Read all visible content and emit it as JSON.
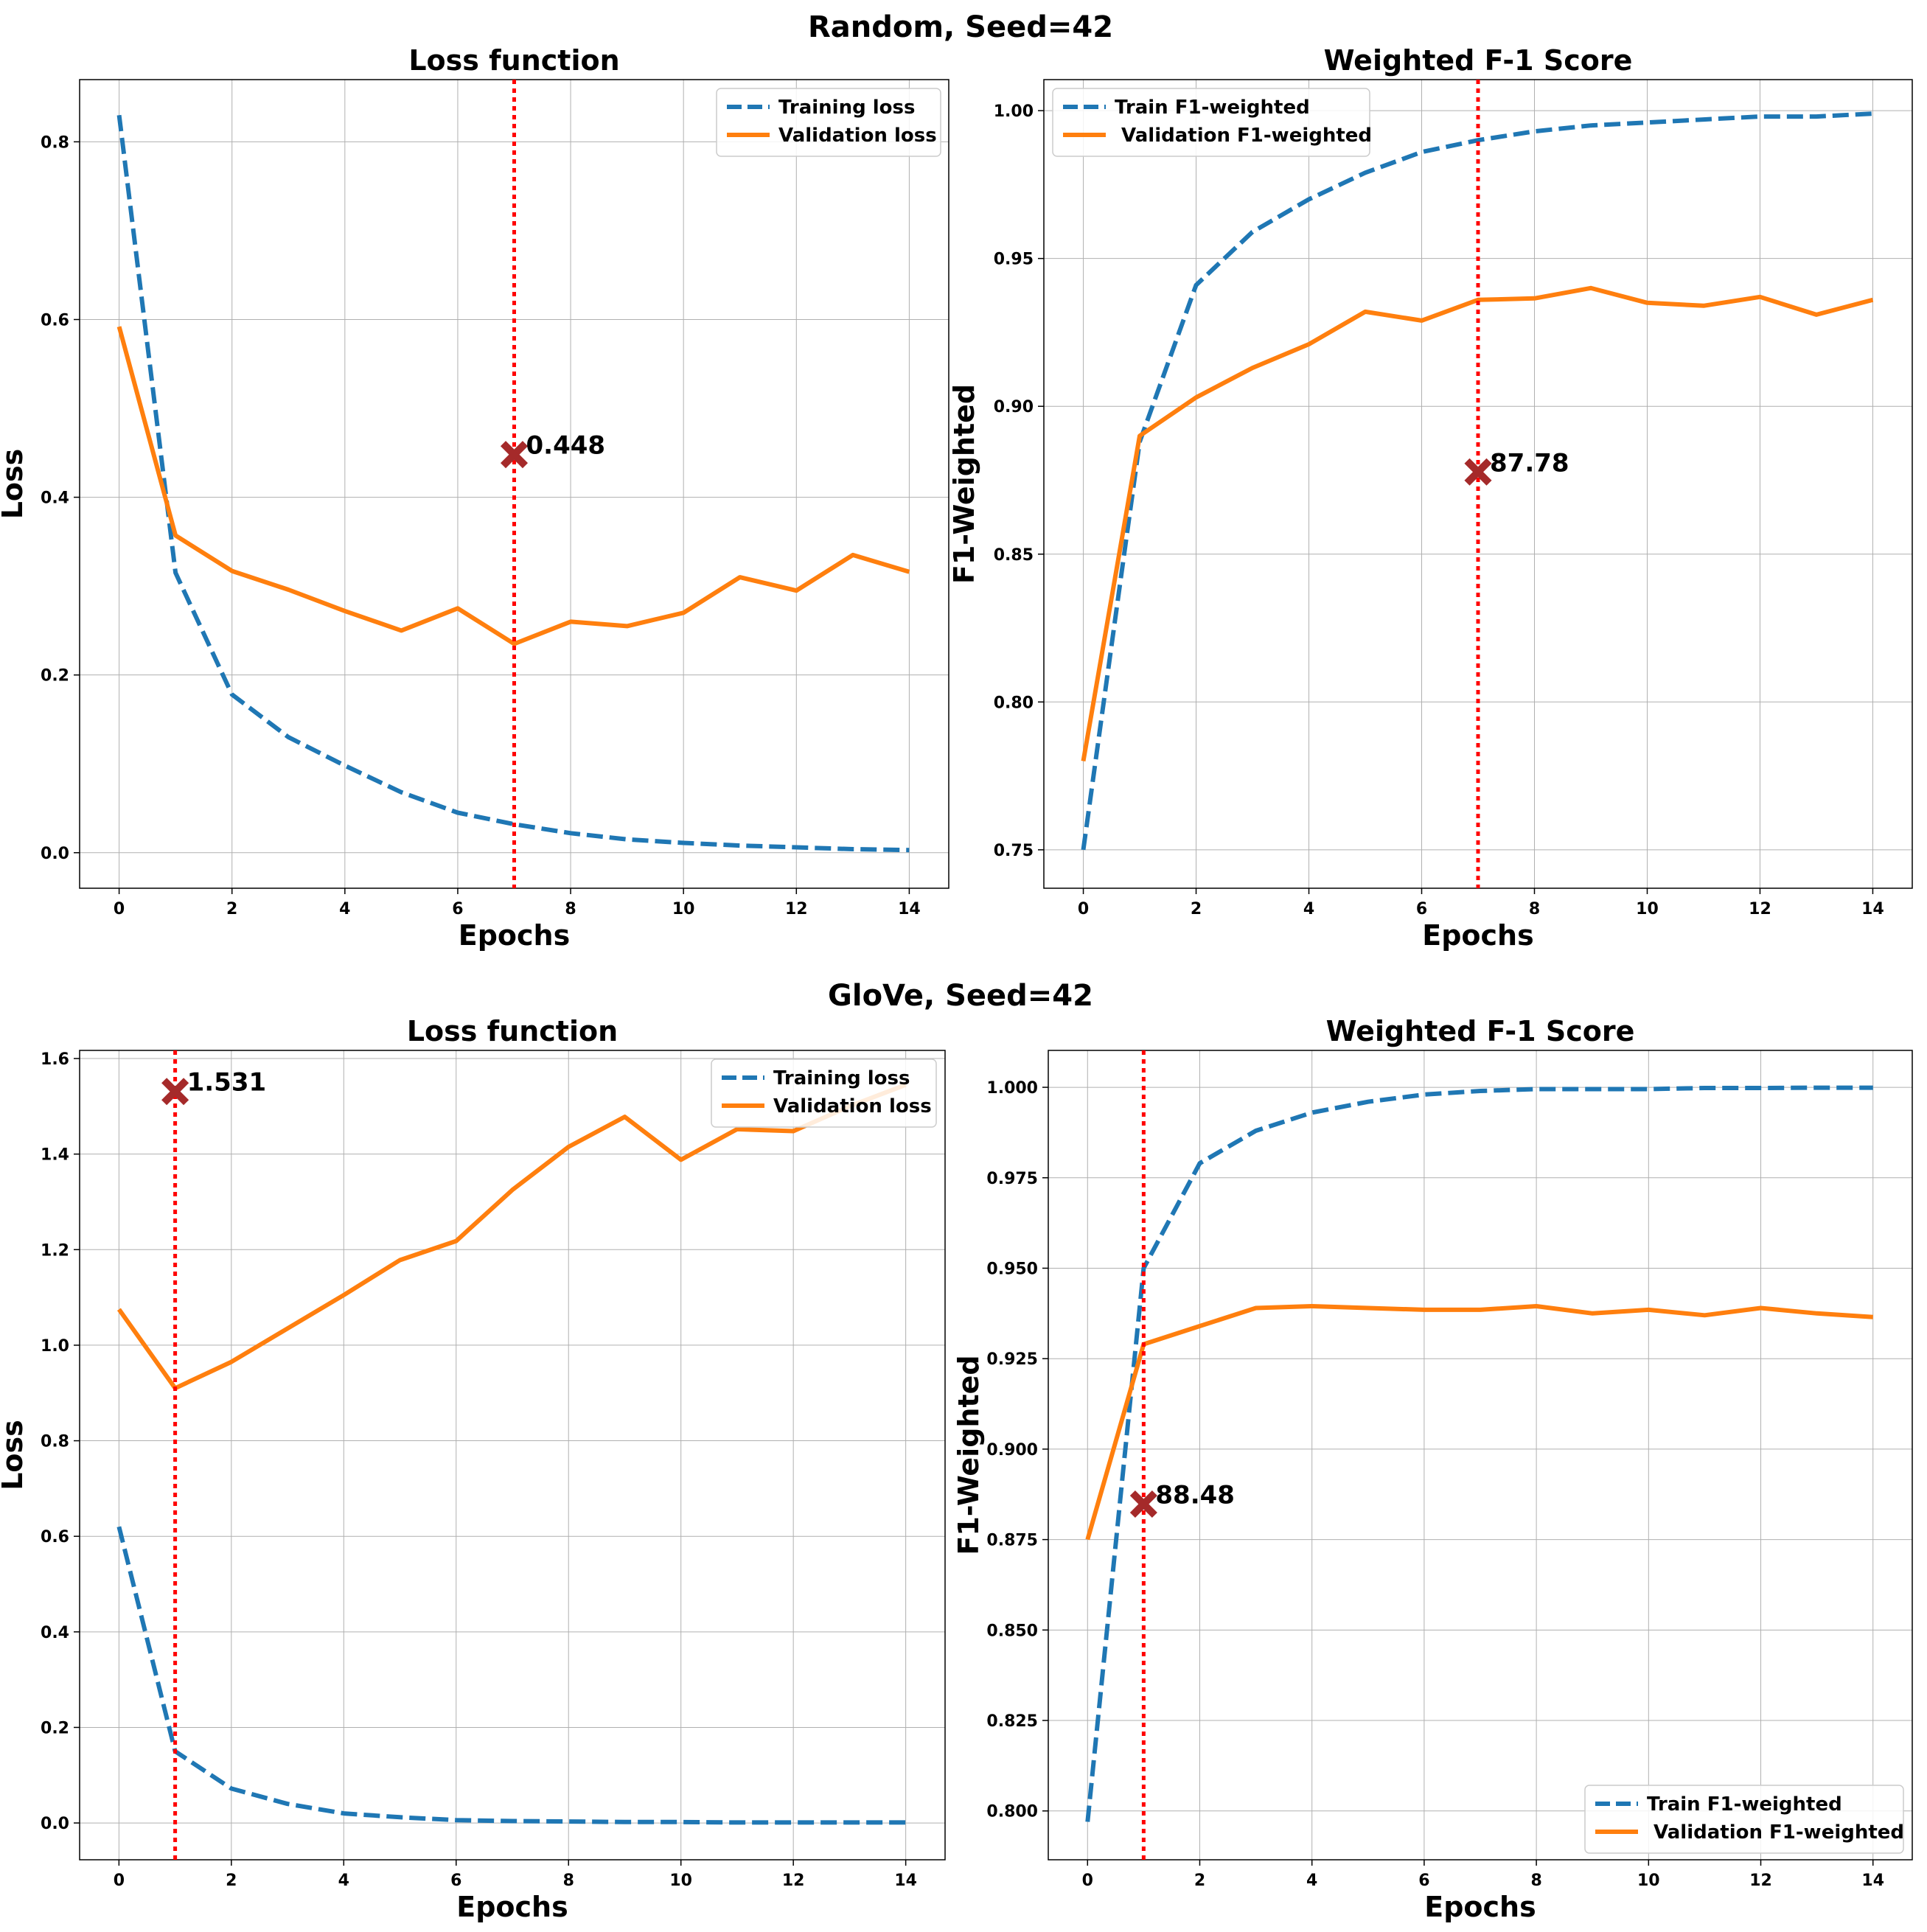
{
  "figures": [
    {
      "title": "Random, Seed=42"
    },
    {
      "title": "GloVe, Seed=42"
    }
  ],
  "chart_data": [
    {
      "type": "line",
      "group": "Random, Seed=42",
      "title": "Loss function",
      "xlabel": "Epochs",
      "ylabel": "Loss",
      "xlim": [
        -0.7,
        14.7
      ],
      "ylim": [
        -0.04,
        0.87
      ],
      "xticks": [
        0,
        2,
        4,
        6,
        8,
        10,
        12,
        14
      ],
      "xtick_labels": [
        "0",
        "2",
        "4",
        "6",
        "8",
        "10",
        "12",
        "14"
      ],
      "yticks": [
        0.0,
        0.2,
        0.4,
        0.6,
        0.8
      ],
      "ytick_labels": [
        "0.0",
        "0.2",
        "0.4",
        "0.6",
        "0.8"
      ],
      "grid": true,
      "legend": "upper right",
      "x": [
        0,
        1,
        2,
        3,
        4,
        5,
        6,
        7,
        8,
        9,
        10,
        11,
        12,
        13,
        14
      ],
      "series": [
        {
          "name": "Training loss",
          "style": "dashed",
          "color": "#1f77b4",
          "values": [
            0.83,
            0.315,
            0.178,
            0.13,
            0.098,
            0.068,
            0.045,
            0.032,
            0.022,
            0.015,
            0.011,
            0.008,
            0.006,
            0.004,
            0.003
          ]
        },
        {
          "name": "Validation loss",
          "style": "solid",
          "color": "#ff7f0e",
          "values": [
            0.592,
            0.357,
            0.317,
            0.296,
            0.272,
            0.25,
            0.275,
            0.235,
            0.26,
            0.255,
            0.27,
            0.31,
            0.295,
            0.335,
            0.316
          ]
        }
      ],
      "vline": {
        "x": 7,
        "color": "#ff0000"
      },
      "marker": {
        "x": 7,
        "y": 0.448,
        "label": "0.448",
        "color": "#a52a2a"
      }
    },
    {
      "type": "line",
      "group": "Random, Seed=42",
      "title": "Weighted F-1 Score",
      "xlabel": "Epochs",
      "ylabel": "F1-Weighted",
      "xlim": [
        -0.7,
        14.7
      ],
      "ylim": [
        0.737,
        1.0105
      ],
      "xticks": [
        0,
        2,
        4,
        6,
        8,
        10,
        12,
        14
      ],
      "xtick_labels": [
        "0",
        "2",
        "4",
        "6",
        "8",
        "10",
        "12",
        "14"
      ],
      "yticks": [
        0.75,
        0.8,
        0.85,
        0.9,
        0.95,
        1.0
      ],
      "ytick_labels": [
        "0.75",
        "0.80",
        "0.85",
        "0.90",
        "0.95",
        "1.00"
      ],
      "grid": true,
      "legend": "upper left",
      "x": [
        0,
        1,
        2,
        3,
        4,
        5,
        6,
        7,
        8,
        9,
        10,
        11,
        12,
        13,
        14
      ],
      "series": [
        {
          "name": "Train F1-weighted",
          "style": "dashed",
          "color": "#1f77b4",
          "values": [
            0.75,
            0.888,
            0.941,
            0.959,
            0.97,
            0.979,
            0.986,
            0.99,
            0.993,
            0.995,
            0.996,
            0.997,
            0.998,
            0.998,
            0.999
          ]
        },
        {
          "name": " Validation F1-weighted",
          "style": "solid",
          "color": "#ff7f0e",
          "values": [
            0.78,
            0.89,
            0.903,
            0.913,
            0.921,
            0.932,
            0.929,
            0.936,
            0.9365,
            0.94,
            0.935,
            0.934,
            0.937,
            0.931,
            0.936
          ]
        }
      ],
      "vline": {
        "x": 7,
        "color": "#ff0000"
      },
      "marker": {
        "x": 7,
        "y": 0.8778,
        "label": "87.78",
        "color": "#a52a2a"
      }
    },
    {
      "type": "line",
      "group": "GloVe, Seed=42",
      "title": "Loss function",
      "xlabel": "Epochs",
      "ylabel": "Loss",
      "xlim": [
        -0.7,
        14.7
      ],
      "ylim": [
        -0.077,
        1.617
      ],
      "xticks": [
        0,
        2,
        4,
        6,
        8,
        10,
        12,
        14
      ],
      "xtick_labels": [
        "0",
        "2",
        "4",
        "6",
        "8",
        "10",
        "12",
        "14"
      ],
      "yticks": [
        0.0,
        0.2,
        0.4,
        0.6,
        0.8,
        1.0,
        1.2,
        1.4,
        1.6
      ],
      "ytick_labels": [
        "0.0",
        "0.2",
        "0.4",
        "0.6",
        "0.8",
        "1.0",
        "1.2",
        "1.4",
        "1.6"
      ],
      "grid": true,
      "legend": "upper right",
      "x": [
        0,
        1,
        2,
        3,
        4,
        5,
        6,
        7,
        8,
        9,
        10,
        11,
        12,
        13,
        14
      ],
      "series": [
        {
          "name": "Training loss",
          "style": "dashed",
          "color": "#1f77b4",
          "values": [
            0.62,
            0.15,
            0.072,
            0.04,
            0.02,
            0.012,
            0.006,
            0.004,
            0.003,
            0.002,
            0.002,
            0.001,
            0.001,
            0.001,
            0.001
          ]
        },
        {
          "name": "Validation loss",
          "style": "solid",
          "color": "#ff7f0e",
          "values": [
            1.075,
            0.91,
            0.965,
            1.035,
            1.105,
            1.178,
            1.218,
            1.325,
            1.415,
            1.478,
            1.388,
            1.452,
            1.448,
            1.5,
            1.545
          ]
        }
      ],
      "vline": {
        "x": 1,
        "color": "#ff0000"
      },
      "marker": {
        "x": 1,
        "y": 1.531,
        "label": "1.531",
        "color": "#a52a2a"
      }
    },
    {
      "type": "line",
      "group": "GloVe, Seed=42",
      "title": "Weighted F-1 Score",
      "xlabel": "Epochs",
      "ylabel": "F1-Weighted",
      "xlim": [
        -0.7,
        14.7
      ],
      "ylim": [
        0.7865,
        1.0102
      ],
      "xticks": [
        0,
        2,
        4,
        6,
        8,
        10,
        12,
        14
      ],
      "xtick_labels": [
        "0",
        "2",
        "4",
        "6",
        "8",
        "10",
        "12",
        "14"
      ],
      "yticks": [
        0.8,
        0.825,
        0.85,
        0.875,
        0.9,
        0.925,
        0.95,
        0.975,
        1.0
      ],
      "ytick_labels": [
        "0.800",
        "0.825",
        "0.850",
        "0.875",
        "0.900",
        "0.925",
        "0.950",
        "0.975",
        "1.000"
      ],
      "grid": true,
      "legend": "lower right",
      "x": [
        0,
        1,
        2,
        3,
        4,
        5,
        6,
        7,
        8,
        9,
        10,
        11,
        12,
        13,
        14
      ],
      "series": [
        {
          "name": "Train F1-weighted",
          "style": "dashed",
          "color": "#1f77b4",
          "values": [
            0.797,
            0.95,
            0.979,
            0.988,
            0.993,
            0.996,
            0.998,
            0.999,
            0.9995,
            0.9995,
            0.9995,
            0.9998,
            0.9998,
            0.9999,
            0.9999
          ]
        },
        {
          "name": " Validation F1-weighted",
          "style": "solid",
          "color": "#ff7f0e",
          "values": [
            0.875,
            0.929,
            0.934,
            0.939,
            0.9395,
            0.939,
            0.9385,
            0.9385,
            0.9395,
            0.9375,
            0.9385,
            0.937,
            0.939,
            0.9375,
            0.9365
          ]
        }
      ],
      "vline": {
        "x": 1,
        "color": "#ff0000"
      },
      "marker": {
        "x": 1,
        "y": 0.8848,
        "label": "88.48",
        "color": "#a52a2a"
      }
    }
  ]
}
